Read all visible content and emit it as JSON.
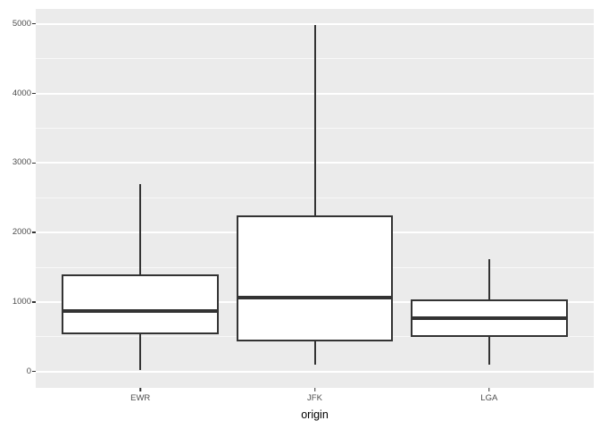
{
  "chart_data": {
    "type": "boxplot",
    "title": "",
    "xlabel": "origin",
    "ylabel": "",
    "categories": [
      "EWR",
      "JFK",
      "LGA"
    ],
    "series": [
      {
        "name": "EWR",
        "whisker_low": 17,
        "q1": 533,
        "median": 872,
        "q3": 1400,
        "whisker_high": 2693
      },
      {
        "name": "JFK",
        "whisker_low": 94,
        "q1": 427,
        "median": 1069,
        "q3": 2248,
        "whisker_high": 4980
      },
      {
        "name": "LGA",
        "whisker_low": 96,
        "q1": 502,
        "median": 762,
        "q3": 1035,
        "whisker_high": 1620
      }
    ],
    "y_ticks": [
      0,
      1000,
      2000,
      3000,
      4000,
      5000
    ],
    "y_minor_step": 500,
    "ylim": [
      -235,
      5215
    ],
    "grid": true,
    "legend": "none",
    "outliers_shown": false
  },
  "style": {
    "page_bg": "#ffffff",
    "panel_bg": "#EBEBEB",
    "grid_major": "#FFFFFF",
    "grid_minor": "#FFFFFF",
    "line_color": "#333333",
    "box_fill": "#FFFFFF",
    "axis_text_color": "#4D4D4D",
    "axis_title_color": "#000000",
    "tick_mark_color": "#333333"
  }
}
